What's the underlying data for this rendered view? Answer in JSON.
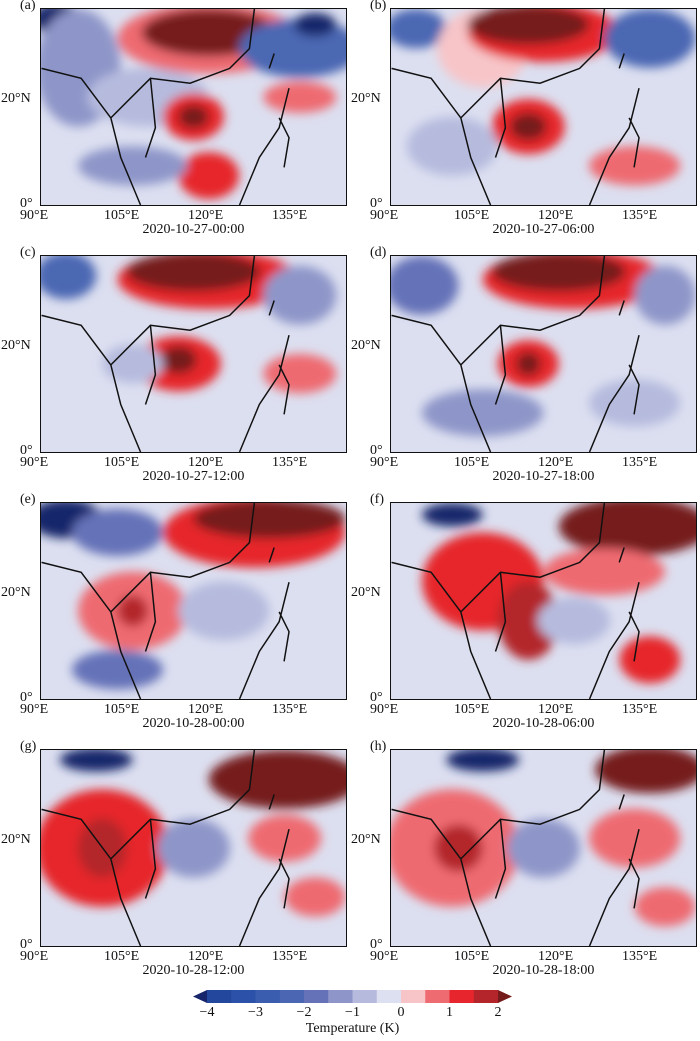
{
  "panels": [
    {
      "label": "(a)",
      "time": "2020-10-27-00:00"
    },
    {
      "label": "(b)",
      "time": "2020-10-27-06:00"
    },
    {
      "label": "(c)",
      "time": "2020-10-27-12:00"
    },
    {
      "label": "(d)",
      "time": "2020-10-27-18:00"
    },
    {
      "label": "(e)",
      "time": "2020-10-28-00:00"
    },
    {
      "label": "(f)",
      "time": "2020-10-28-06:00"
    },
    {
      "label": "(g)",
      "time": "2020-10-28-12:00"
    },
    {
      "label": "(h)",
      "time": "2020-10-28-18:00"
    }
  ],
  "x_ticks": [
    "90°E",
    "105°E",
    "120°E",
    "135°E"
  ],
  "y_ticks": [
    "20°N",
    "0°"
  ],
  "colorbar": {
    "label": "Temperature (K)",
    "ticks": [
      "−4",
      "−3",
      "−2",
      "−1",
      "0",
      "1",
      "2"
    ],
    "range": [
      -4,
      2
    ],
    "step": 0.5,
    "extend": "both",
    "colors": [
      "#24479e",
      "#2b52a8",
      "#3a5db0",
      "#4b67b3",
      "#6572b8",
      "#8e96c9",
      "#b6bbde",
      "#dde0f0",
      "#f7c5c8",
      "#ee6b71",
      "#e6262c",
      "#b3252b"
    ],
    "under_color": "#17266b",
    "over_color": "#761b1b"
  }
}
